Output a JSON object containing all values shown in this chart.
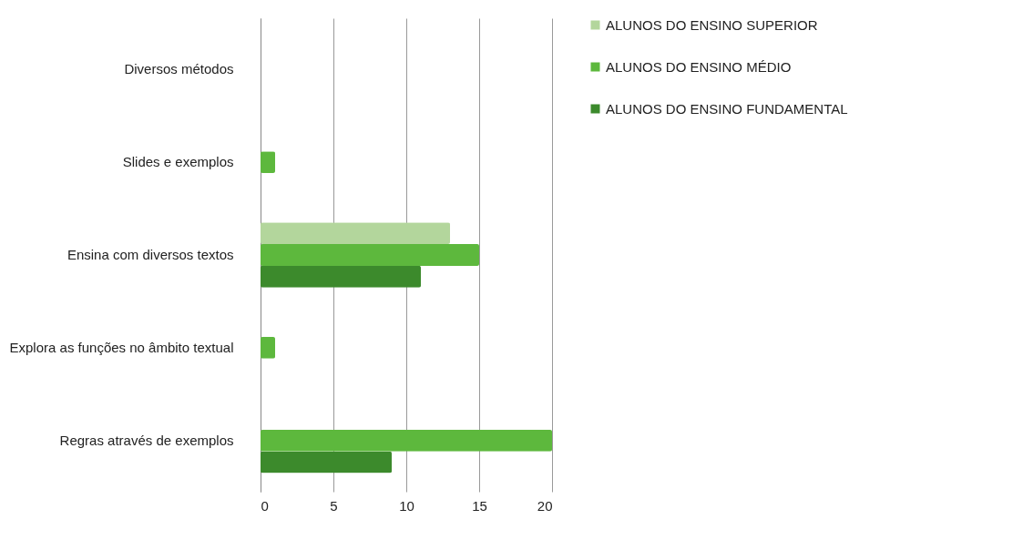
{
  "chart_data": {
    "type": "bar",
    "orientation": "horizontal",
    "categories": [
      "Diversos métodos",
      "Slides e exemplos",
      "Ensina com diversos textos",
      "Explora as funções no âmbito textual",
      "Regras através de exemplos"
    ],
    "series": [
      {
        "name": "ALUNOS DO ENSINO SUPERIOR",
        "color": "#b3d69c",
        "values": [
          0,
          0,
          13,
          0,
          0
        ]
      },
      {
        "name": "ALUNOS DO ENSINO MÉDIO",
        "color": "#5db83d",
        "values": [
          0,
          1,
          15,
          1,
          20
        ]
      },
      {
        "name": "ALUNOS DO ENSINO FUNDAMENTAL",
        "color": "#3c8a2c",
        "values": [
          0,
          0,
          11,
          0,
          9
        ]
      }
    ],
    "xlim": [
      0,
      20
    ],
    "xticks": [
      0,
      5,
      10,
      15,
      20
    ],
    "grid": "x",
    "legend": "right"
  }
}
